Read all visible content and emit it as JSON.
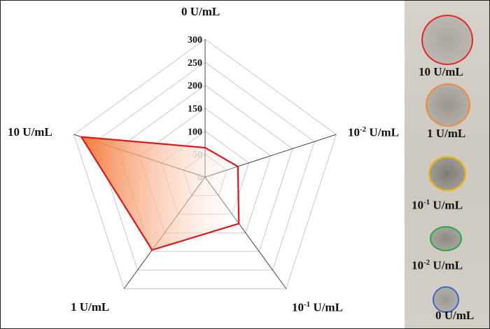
{
  "chart_data": {
    "type": "radar",
    "axes": [
      "0 U/mL",
      "10^-2 U/mL",
      "10^-1 U/mL",
      "1 U/mL",
      "10 U/mL"
    ],
    "axis_labels": [
      {
        "base": "0 U/mL",
        "sup": ""
      },
      {
        "base": "10",
        "sup": "-2",
        "unit": " U/mL"
      },
      {
        "base": "10",
        "sup": "-1",
        "unit": " U/mL"
      },
      {
        "base": "1 U/mL",
        "sup": ""
      },
      {
        "base": "10 U/mL",
        "sup": ""
      }
    ],
    "values": [
      64,
      75,
      125,
      196,
      283
    ],
    "rlim": [
      0,
      300
    ],
    "ticks": [
      "0",
      "50",
      "100",
      "150",
      "200",
      "250",
      "300"
    ],
    "line_color": "#e0161e",
    "fill_gradient": [
      "#f47a3a",
      "#ffffff"
    ],
    "grid": true
  },
  "photo_panel": {
    "spots": [
      {
        "label": "10 U/mL",
        "color": "#e8232a"
      },
      {
        "label": "1 U/mL",
        "color": "#f08a3a"
      },
      {
        "label_base": "10",
        "label_sup": "-1",
        "label_unit": " U/mL",
        "color": "#f2b705"
      },
      {
        "label_base": "10",
        "label_sup": "-2",
        "label_unit": " U/mL",
        "color": "#27a844"
      },
      {
        "label": "0 U/mL",
        "color": "#3a66c8"
      }
    ]
  }
}
